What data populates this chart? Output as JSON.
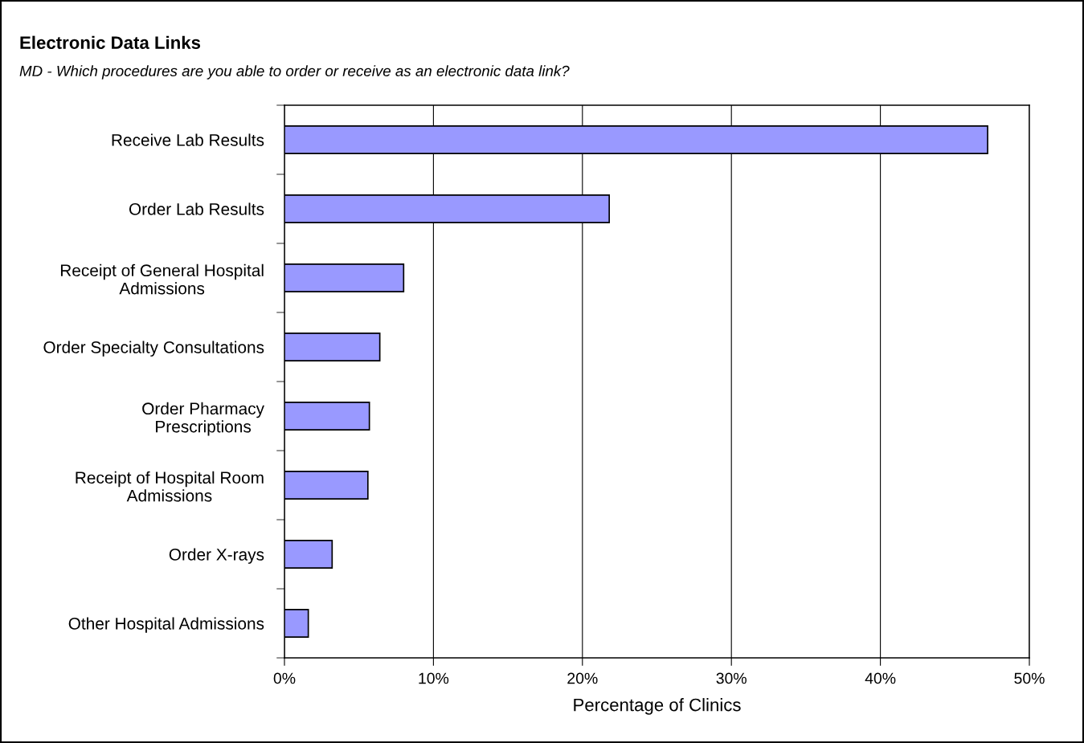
{
  "chart_data": {
    "type": "bar",
    "orientation": "horizontal",
    "title": "Electronic Data Links",
    "subtitle": "MD - Which procedures are you able to order or receive as an electronic data link?",
    "xlabel": "Percentage of Clinics",
    "categories": [
      "Receive Lab Results",
      "Order Lab Results",
      "Receipt of General Hospital\nAdmissions",
      "Order Specialty Consultations",
      "Order Pharmacy\nPrescriptions",
      "Receipt of Hospital Room\nAdmissions",
      "Order X-rays",
      "Other Hospital Admissions"
    ],
    "values": [
      47.2,
      21.8,
      8.0,
      6.4,
      5.7,
      5.6,
      3.2,
      1.6
    ],
    "color": "#9999ff",
    "xlim": [
      0,
      50
    ],
    "xticks": [
      {
        "value": 0,
        "label": "0%"
      },
      {
        "value": 10,
        "label": "10%"
      },
      {
        "value": 20,
        "label": "20%"
      },
      {
        "value": 30,
        "label": "30%"
      },
      {
        "value": 40,
        "label": "40%"
      },
      {
        "value": 50,
        "label": "50%"
      }
    ],
    "grid": "x"
  }
}
